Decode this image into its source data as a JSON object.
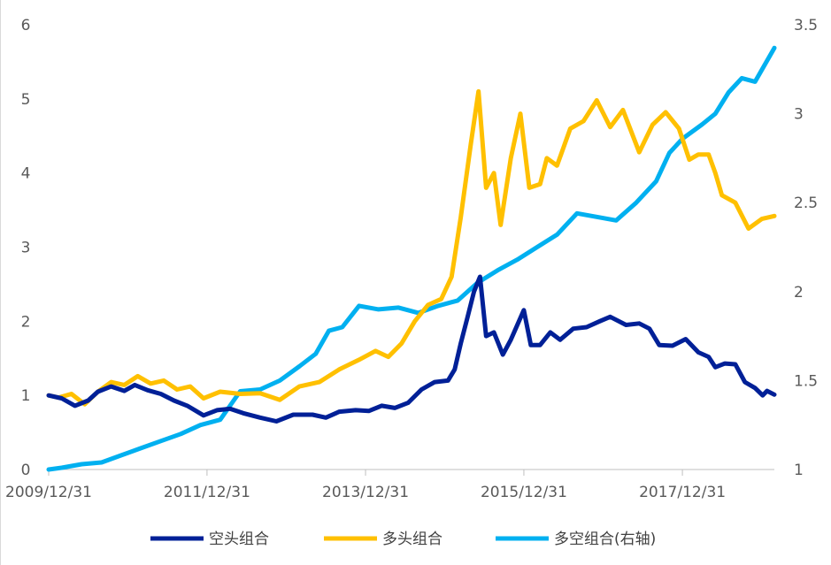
{
  "chart_data": {
    "type": "line",
    "x_tick_labels": [
      "2009/12/31",
      "2011/12/31",
      "2013/12/31",
      "2015/12/31",
      "2017/12/31"
    ],
    "x_range": [
      "2009/12/31",
      "2019/02/28"
    ],
    "y_left": {
      "ticks": [
        "0",
        "1",
        "2",
        "3",
        "4",
        "5",
        "6"
      ],
      "range": [
        0,
        6
      ]
    },
    "y_right": {
      "ticks": [
        "1",
        "1.5",
        "2",
        "2.5",
        "3",
        "3.5"
      ],
      "range": [
        1,
        3.5
      ]
    },
    "legend_position": "bottom",
    "grid": false,
    "series": [
      {
        "name": "空头组合",
        "axis": "left",
        "color": "#002097",
        "points": [
          [
            "2009/12/31",
            1.0
          ],
          [
            "2010/03/01",
            0.96
          ],
          [
            "2010/05/01",
            0.86
          ],
          [
            "2010/07/01",
            0.93
          ],
          [
            "2010/08/15",
            1.05
          ],
          [
            "2010/10/15",
            1.12
          ],
          [
            "2010/12/15",
            1.06
          ],
          [
            "2011/02/01",
            1.14
          ],
          [
            "2011/04/01",
            1.07
          ],
          [
            "2011/06/01",
            1.02
          ],
          [
            "2011/08/01",
            0.93
          ],
          [
            "2011/10/01",
            0.86
          ],
          [
            "2011/12/15",
            0.73
          ],
          [
            "2012/02/15",
            0.8
          ],
          [
            "2012/04/15",
            0.82
          ],
          [
            "2012/06/15",
            0.76
          ],
          [
            "2012/09/01",
            0.7
          ],
          [
            "2012/11/15",
            0.65
          ],
          [
            "2013/02/01",
            0.74
          ],
          [
            "2013/05/01",
            0.74
          ],
          [
            "2013/07/01",
            0.7
          ],
          [
            "2013/09/01",
            0.78
          ],
          [
            "2013/11/15",
            0.8
          ],
          [
            "2014/01/15",
            0.79
          ],
          [
            "2014/03/15",
            0.86
          ],
          [
            "2014/05/15",
            0.83
          ],
          [
            "2014/07/15",
            0.9
          ],
          [
            "2014/09/15",
            1.08
          ],
          [
            "2014/11/15",
            1.18
          ],
          [
            "2015/01/15",
            1.2
          ],
          [
            "2015/02/15",
            1.35
          ],
          [
            "2015/03/15",
            1.7
          ],
          [
            "2015/04/15",
            2.05
          ],
          [
            "2015/05/15",
            2.4
          ],
          [
            "2015/06/12",
            2.6
          ],
          [
            "2015/07/10",
            1.8
          ],
          [
            "2015/08/15",
            1.85
          ],
          [
            "2015/09/25",
            1.55
          ],
          [
            "2015/11/01",
            1.75
          ],
          [
            "2015/12/31",
            2.15
          ],
          [
            "2016/02/01",
            1.68
          ],
          [
            "2016/03/15",
            1.68
          ],
          [
            "2016/05/01",
            1.85
          ],
          [
            "2016/06/15",
            1.75
          ],
          [
            "2016/08/15",
            1.9
          ],
          [
            "2016/10/15",
            1.92
          ],
          [
            "2016/12/15",
            2.0
          ],
          [
            "2017/02/01",
            2.06
          ],
          [
            "2017/04/15",
            1.95
          ],
          [
            "2017/06/15",
            1.97
          ],
          [
            "2017/08/01",
            1.9
          ],
          [
            "2017/09/15",
            1.68
          ],
          [
            "2017/11/15",
            1.67
          ],
          [
            "2018/01/15",
            1.76
          ],
          [
            "2018/03/15",
            1.58
          ],
          [
            "2018/05/01",
            1.52
          ],
          [
            "2018/06/01",
            1.38
          ],
          [
            "2018/07/15",
            1.43
          ],
          [
            "2018/09/01",
            1.42
          ],
          [
            "2018/10/15",
            1.18
          ],
          [
            "2018/12/01",
            1.1
          ],
          [
            "2019/01/05",
            1.0
          ],
          [
            "2019/01/25",
            1.06
          ],
          [
            "2019/02/28",
            1.01
          ]
        ]
      },
      {
        "name": "多头组合",
        "axis": "left",
        "color": "#ffc000",
        "points": [
          [
            "2009/12/31",
            1.0
          ],
          [
            "2010/02/15",
            0.97
          ],
          [
            "2010/04/15",
            1.02
          ],
          [
            "2010/06/15",
            0.88
          ],
          [
            "2010/08/15",
            1.05
          ],
          [
            "2010/10/15",
            1.18
          ],
          [
            "2010/12/15",
            1.14
          ],
          [
            "2011/02/15",
            1.26
          ],
          [
            "2011/04/15",
            1.16
          ],
          [
            "2011/06/15",
            1.2
          ],
          [
            "2011/08/15",
            1.08
          ],
          [
            "2011/10/15",
            1.12
          ],
          [
            "2011/12/15",
            0.96
          ],
          [
            "2012/03/01",
            1.05
          ],
          [
            "2012/06/01",
            1.02
          ],
          [
            "2012/09/01",
            1.03
          ],
          [
            "2012/12/01",
            0.94
          ],
          [
            "2013/03/01",
            1.12
          ],
          [
            "2013/06/01",
            1.18
          ],
          [
            "2013/09/01",
            1.35
          ],
          [
            "2013/12/01",
            1.48
          ],
          [
            "2014/02/15",
            1.6
          ],
          [
            "2014/04/15",
            1.52
          ],
          [
            "2014/06/15",
            1.7
          ],
          [
            "2014/08/15",
            2.0
          ],
          [
            "2014/10/15",
            2.22
          ],
          [
            "2014/12/15",
            2.3
          ],
          [
            "2015/02/01",
            2.6
          ],
          [
            "2015/03/15",
            3.4
          ],
          [
            "2015/05/01",
            4.4
          ],
          [
            "2015/06/05",
            5.1
          ],
          [
            "2015/07/10",
            3.8
          ],
          [
            "2015/08/15",
            4.0
          ],
          [
            "2015/09/15",
            3.3
          ],
          [
            "2015/11/01",
            4.2
          ],
          [
            "2015/12/15",
            4.8
          ],
          [
            "2016/01/25",
            3.8
          ],
          [
            "2016/03/15",
            3.85
          ],
          [
            "2016/04/15",
            4.2
          ],
          [
            "2016/06/01",
            4.1
          ],
          [
            "2016/08/01",
            4.6
          ],
          [
            "2016/10/01",
            4.7
          ],
          [
            "2016/12/01",
            4.98
          ],
          [
            "2017/02/01",
            4.62
          ],
          [
            "2017/04/01",
            4.85
          ],
          [
            "2017/06/15",
            4.28
          ],
          [
            "2017/08/15",
            4.65
          ],
          [
            "2017/10/15",
            4.82
          ],
          [
            "2017/12/15",
            4.6
          ],
          [
            "2018/02/01",
            4.18
          ],
          [
            "2018/03/15",
            4.25
          ],
          [
            "2018/05/01",
            4.25
          ],
          [
            "2018/06/01",
            4.0
          ],
          [
            "2018/07/01",
            3.7
          ],
          [
            "2018/09/01",
            3.6
          ],
          [
            "2018/11/01",
            3.25
          ],
          [
            "2019/01/01",
            3.38
          ],
          [
            "2019/02/28",
            3.42
          ]
        ]
      },
      {
        "name": "多空组合(右轴)",
        "axis": "right",
        "color": "#00b0f0",
        "points": [
          [
            "2009/12/31",
            1.0
          ],
          [
            "2010/03/01",
            1.01
          ],
          [
            "2010/06/01",
            1.03
          ],
          [
            "2010/09/01",
            1.04
          ],
          [
            "2010/12/01",
            1.08
          ],
          [
            "2011/03/01",
            1.12
          ],
          [
            "2011/06/01",
            1.16
          ],
          [
            "2011/09/01",
            1.2
          ],
          [
            "2011/12/01",
            1.25
          ],
          [
            "2012/03/01",
            1.28
          ],
          [
            "2012/06/01",
            1.44
          ],
          [
            "2012/09/01",
            1.45
          ],
          [
            "2012/12/01",
            1.5
          ],
          [
            "2013/03/01",
            1.58
          ],
          [
            "2013/05/15",
            1.65
          ],
          [
            "2013/07/15",
            1.78
          ],
          [
            "2013/09/15",
            1.8
          ],
          [
            "2013/12/01",
            1.92
          ],
          [
            "2014/03/01",
            1.9
          ],
          [
            "2014/06/01",
            1.91
          ],
          [
            "2014/09/01",
            1.88
          ],
          [
            "2014/12/01",
            1.92
          ],
          [
            "2015/03/01",
            1.95
          ],
          [
            "2015/06/01",
            2.05
          ],
          [
            "2015/09/01",
            2.12
          ],
          [
            "2015/12/01",
            2.18
          ],
          [
            "2016/03/01",
            2.25
          ],
          [
            "2016/06/01",
            2.32
          ],
          [
            "2016/09/01",
            2.44
          ],
          [
            "2016/12/01",
            2.42
          ],
          [
            "2017/03/01",
            2.4
          ],
          [
            "2017/06/01",
            2.5
          ],
          [
            "2017/09/01",
            2.62
          ],
          [
            "2017/11/01",
            2.78
          ],
          [
            "2018/01/01",
            2.86
          ],
          [
            "2018/04/01",
            2.94
          ],
          [
            "2018/06/01",
            3.0
          ],
          [
            "2018/08/01",
            3.12
          ],
          [
            "2018/10/01",
            3.2
          ],
          [
            "2018/12/01",
            3.18
          ],
          [
            "2019/02/28",
            3.37
          ]
        ]
      }
    ]
  }
}
